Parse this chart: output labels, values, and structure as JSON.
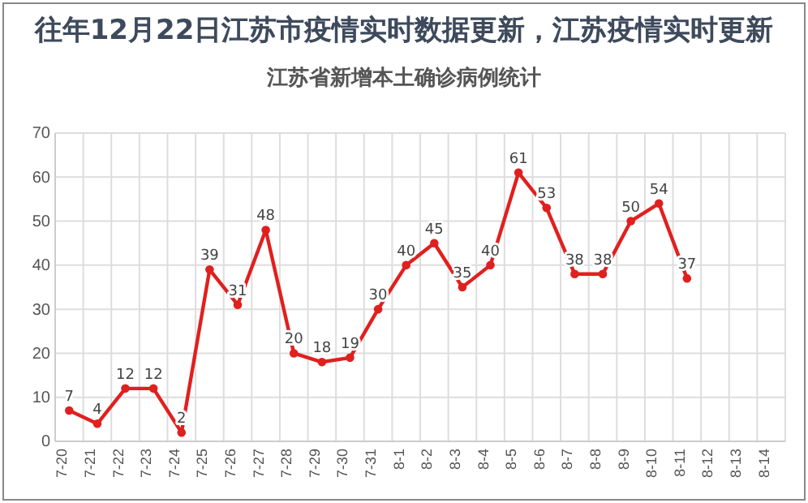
{
  "chart_data": {
    "type": "line",
    "title": "江苏省新增本土确诊病例统计",
    "subtitle": "往年12月22日江苏市疫情实时数据更新，江苏疫情实时更新",
    "categories": [
      "7-20",
      "7-21",
      "7-22",
      "7-23",
      "7-24",
      "7-25",
      "7-26",
      "7-27",
      "7-28",
      "7-29",
      "7-30",
      "7-31",
      "8-1",
      "8-2",
      "8-3",
      "8-4",
      "8-5",
      "8-6",
      "8-7",
      "8-8",
      "8-9",
      "8-10",
      "8-11",
      "8-12",
      "8-13",
      "8-14"
    ],
    "series": [
      {
        "color": "#e0201f",
        "values": [
          7,
          4,
          12,
          12,
          2,
          39,
          31,
          48,
          20,
          18,
          19,
          30,
          40,
          45,
          35,
          40,
          61,
          53,
          38,
          38,
          50,
          54,
          37,
          null,
          null,
          null
        ]
      }
    ],
    "ylim": [
      0,
      70
    ],
    "yticks": [
      0,
      10,
      20,
      30,
      40,
      50,
      60,
      70
    ],
    "grid": true,
    "marker": "circle",
    "data_labels": true
  }
}
